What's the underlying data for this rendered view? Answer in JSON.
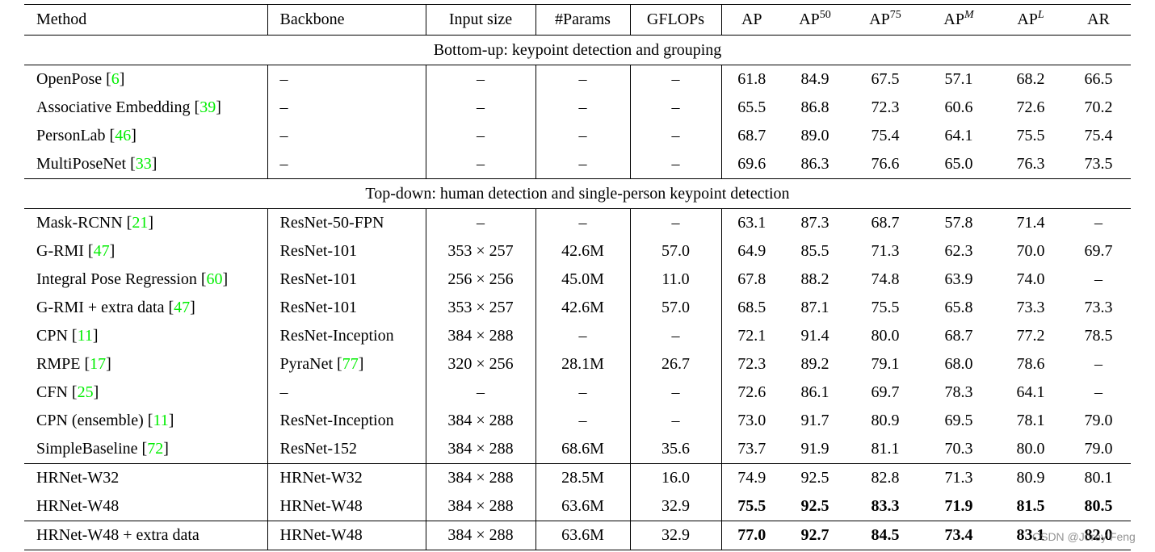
{
  "table": {
    "header": [
      {
        "text": "Method"
      },
      {
        "text": "Backbone"
      },
      {
        "text": "Input size"
      },
      {
        "text": "#Params"
      },
      {
        "text": "GFLOPs"
      },
      {
        "text": "AP"
      },
      {
        "text": "AP",
        "sup": "50"
      },
      {
        "text": "AP",
        "sup": "75"
      },
      {
        "text": "AP",
        "sup": "M"
      },
      {
        "text": "AP",
        "sup": "L"
      },
      {
        "text": "AR"
      }
    ],
    "groups": [
      {
        "title": "Bottom-up: keypoint detection and grouping",
        "rows": [
          {
            "method": "OpenPose",
            "cite": "6",
            "cells": [
              "–",
              "–",
              "–",
              "–",
              "61.8",
              "84.9",
              "67.5",
              "57.1",
              "68.2",
              "66.5"
            ]
          },
          {
            "method": "Associative Embedding",
            "cite": "39",
            "cells": [
              "–",
              "–",
              "–",
              "–",
              "65.5",
              "86.8",
              "72.3",
              "60.6",
              "72.6",
              "70.2"
            ]
          },
          {
            "method": "PersonLab",
            "cite": "46",
            "cells": [
              "–",
              "–",
              "–",
              "–",
              "68.7",
              "89.0",
              "75.4",
              "64.1",
              "75.5",
              "75.4"
            ]
          },
          {
            "method": "MultiPoseNet",
            "cite": "33",
            "cells": [
              "–",
              "–",
              "–",
              "–",
              "69.6",
              "86.3",
              "76.6",
              "65.0",
              "76.3",
              "73.5"
            ]
          }
        ]
      },
      {
        "title": "Top-down: human detection and single-person keypoint detection",
        "rows": [
          {
            "method": "Mask-RCNN",
            "cite": "21",
            "cells": [
              "ResNet-50-FPN",
              "–",
              "–",
              "–",
              "63.1",
              "87.3",
              "68.7",
              "57.8",
              "71.4",
              "–"
            ]
          },
          {
            "method": "G-RMI",
            "cite": "47",
            "cells": [
              "ResNet-101",
              "353 × 257",
              "42.6M",
              "57.0",
              "64.9",
              "85.5",
              "71.3",
              "62.3",
              "70.0",
              "69.7"
            ]
          },
          {
            "method": "Integral Pose Regression",
            "cite": "60",
            "cells": [
              "ResNet-101",
              "256 × 256",
              "45.0M",
              "11.0",
              "67.8",
              "88.2",
              "74.8",
              "63.9",
              "74.0",
              "–"
            ]
          },
          {
            "method": "G-RMI + extra data",
            "cite": "47",
            "cells": [
              "ResNet-101",
              "353 × 257",
              "42.6M",
              "57.0",
              "68.5",
              "87.1",
              "75.5",
              "65.8",
              "73.3",
              "73.3"
            ]
          },
          {
            "method": "CPN",
            "cite": "11",
            "cells": [
              "ResNet-Inception",
              "384 × 288",
              "–",
              "–",
              "72.1",
              "91.4",
              "80.0",
              "68.7",
              "77.2",
              "78.5"
            ]
          },
          {
            "method": "RMPE",
            "cite": "17",
            "cells": [
              {
                "text": "PyraNet",
                "cite": "77"
              },
              "320 × 256",
              "28.1M",
              "26.7",
              "72.3",
              "89.2",
              "79.1",
              "68.0",
              "78.6",
              "–"
            ]
          },
          {
            "method": "CFN",
            "cite": "25",
            "cells": [
              "–",
              "–",
              "–",
              "–",
              "72.6",
              "86.1",
              "69.7",
              "78.3",
              "64.1",
              "–"
            ]
          },
          {
            "method": "CPN (ensemble)",
            "cite": "11",
            "cells": [
              "ResNet-Inception",
              "384 × 288",
              "–",
              "–",
              "73.0",
              "91.7",
              "80.9",
              "69.5",
              "78.1",
              "79.0"
            ]
          },
          {
            "method": "SimpleBaseline",
            "cite": "72",
            "cells": [
              "ResNet-152",
              "384 × 288",
              "68.6M",
              "35.6",
              "73.7",
              "91.9",
              "81.1",
              "70.3",
              "80.0",
              "79.0"
            ]
          }
        ]
      },
      {
        "rows": [
          {
            "method": "HRNet-W32",
            "cells": [
              "HRNet-W32",
              "384 × 288",
              "28.5M",
              "16.0",
              "74.9",
              "92.5",
              "82.8",
              "71.3",
              "80.9",
              "80.1"
            ]
          },
          {
            "method": "HRNet-W48",
            "bold": true,
            "cells": [
              "HRNet-W48",
              "384 × 288",
              "63.6M",
              "32.9",
              "75.5",
              "92.5",
              "83.3",
              "71.9",
              "81.5",
              "80.5"
            ]
          }
        ]
      },
      {
        "rows": [
          {
            "method": "HRNet-W48 + extra data",
            "bold": true,
            "cells": [
              "HRNet-W48",
              "384 × 288",
              "63.6M",
              "32.9",
              "77.0",
              "92.7",
              "84.5",
              "73.4",
              "83.1",
              "82.0"
            ]
          }
        ]
      }
    ]
  },
  "watermark": "CSDN @Jorey Feng"
}
